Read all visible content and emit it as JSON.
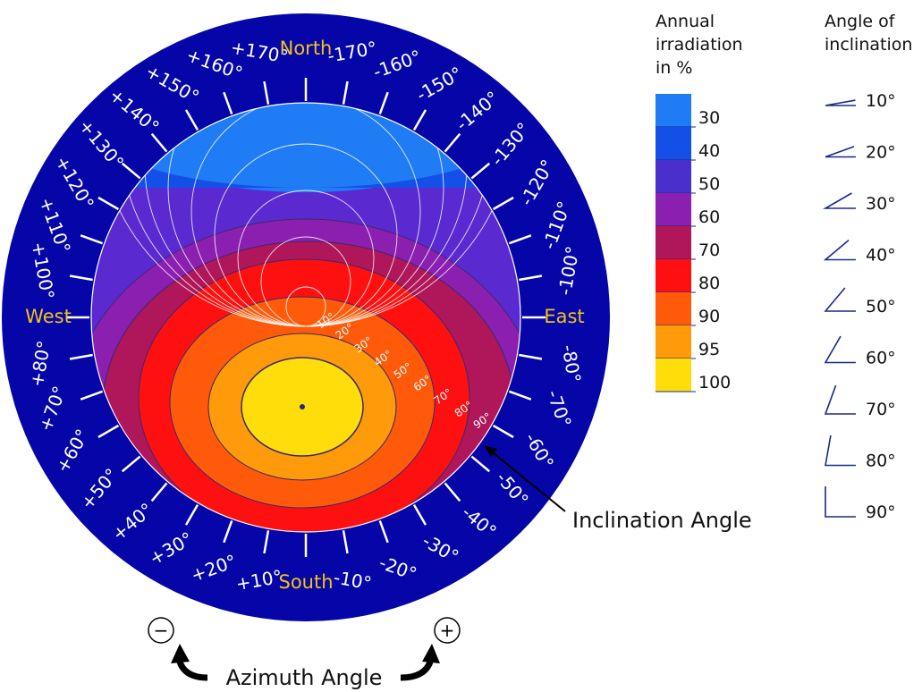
{
  "compass": {
    "north": "North",
    "south": "South",
    "east": "East",
    "west": "West",
    "azimuth_ticks": [
      {
        "deg": -170,
        "label": "-170°"
      },
      {
        "deg": -160,
        "label": "-160°"
      },
      {
        "deg": -150,
        "label": "-150°"
      },
      {
        "deg": -140,
        "label": "-140°"
      },
      {
        "deg": -130,
        "label": "-130°"
      },
      {
        "deg": -120,
        "label": "-120°"
      },
      {
        "deg": -110,
        "label": "-110°"
      },
      {
        "deg": -100,
        "label": "-100°"
      },
      {
        "deg": -80,
        "label": "-80°"
      },
      {
        "deg": -70,
        "label": "-70°"
      },
      {
        "deg": -60,
        "label": "-60°"
      },
      {
        "deg": -50,
        "label": "-50°"
      },
      {
        "deg": -40,
        "label": "-40°"
      },
      {
        "deg": -30,
        "label": "-30°"
      },
      {
        "deg": -20,
        "label": "-20°"
      },
      {
        "deg": -10,
        "label": "-10°"
      },
      {
        "deg": 10,
        "label": "+10°"
      },
      {
        "deg": 20,
        "label": "+20°"
      },
      {
        "deg": 30,
        "label": "+30°"
      },
      {
        "deg": 40,
        "label": "+40°"
      },
      {
        "deg": 50,
        "label": "+50°"
      },
      {
        "deg": 60,
        "label": "+60°"
      },
      {
        "deg": 70,
        "label": "+70°"
      },
      {
        "deg": 80,
        "label": "+80°"
      },
      {
        "deg": 100,
        "label": "+100°"
      },
      {
        "deg": 110,
        "label": "+110°"
      },
      {
        "deg": 120,
        "label": "+120°"
      },
      {
        "deg": 130,
        "label": "+130°"
      },
      {
        "deg": 140,
        "label": "+140°"
      },
      {
        "deg": 150,
        "label": "+150°"
      },
      {
        "deg": 160,
        "label": "+160°"
      },
      {
        "deg": 170,
        "label": "+170°"
      }
    ]
  },
  "inclination_ring_labels": [
    "10°",
    "20°",
    "30°",
    "40°",
    "50°",
    "60°",
    "70°",
    "80°",
    "90°"
  ],
  "irradiation_legend": {
    "title_lines": [
      "Annual",
      "irradiation",
      "in %"
    ],
    "bands": [
      {
        "label": "30",
        "color": "#1f7cf5"
      },
      {
        "label": "40",
        "color": "#1450e8"
      },
      {
        "label": "50",
        "color": "#4a2fcc"
      },
      {
        "label": "60",
        "color": "#8a1fb0"
      },
      {
        "label": "70",
        "color": "#b0165a"
      },
      {
        "label": "80",
        "color": "#ff1010"
      },
      {
        "label": "90",
        "color": "#ff5a0a"
      },
      {
        "label": "95",
        "color": "#ff9a0a"
      },
      {
        "label": "100",
        "color": "#ffdd0a"
      }
    ]
  },
  "inclination_legend": {
    "title_lines": [
      "Angle of",
      "inclination"
    ],
    "angles": [
      {
        "deg": 10,
        "label": "10°"
      },
      {
        "deg": 20,
        "label": "20°"
      },
      {
        "deg": 30,
        "label": "30°"
      },
      {
        "deg": 40,
        "label": "40°"
      },
      {
        "deg": 50,
        "label": "50°"
      },
      {
        "deg": 60,
        "label": "60°"
      },
      {
        "deg": 70,
        "label": "70°"
      },
      {
        "deg": 80,
        "label": "80°"
      },
      {
        "deg": 90,
        "label": "90°"
      }
    ]
  },
  "annotations": {
    "inclination_angle": "Inclination Angle",
    "azimuth_angle": "Azimuth Angle",
    "minus_symbol": "−",
    "plus_symbol": "+"
  },
  "colors": {
    "ring": "#0505a8",
    "ring_text": "#ffffff",
    "cardinal_text": "#f2c21a",
    "disc_base": "#5a2ad0",
    "grid_line": "#ffffff",
    "contour_line": "#3a2a6a",
    "center_dot": "#1a2a8a",
    "legend_line": "#1a2a8a"
  }
}
